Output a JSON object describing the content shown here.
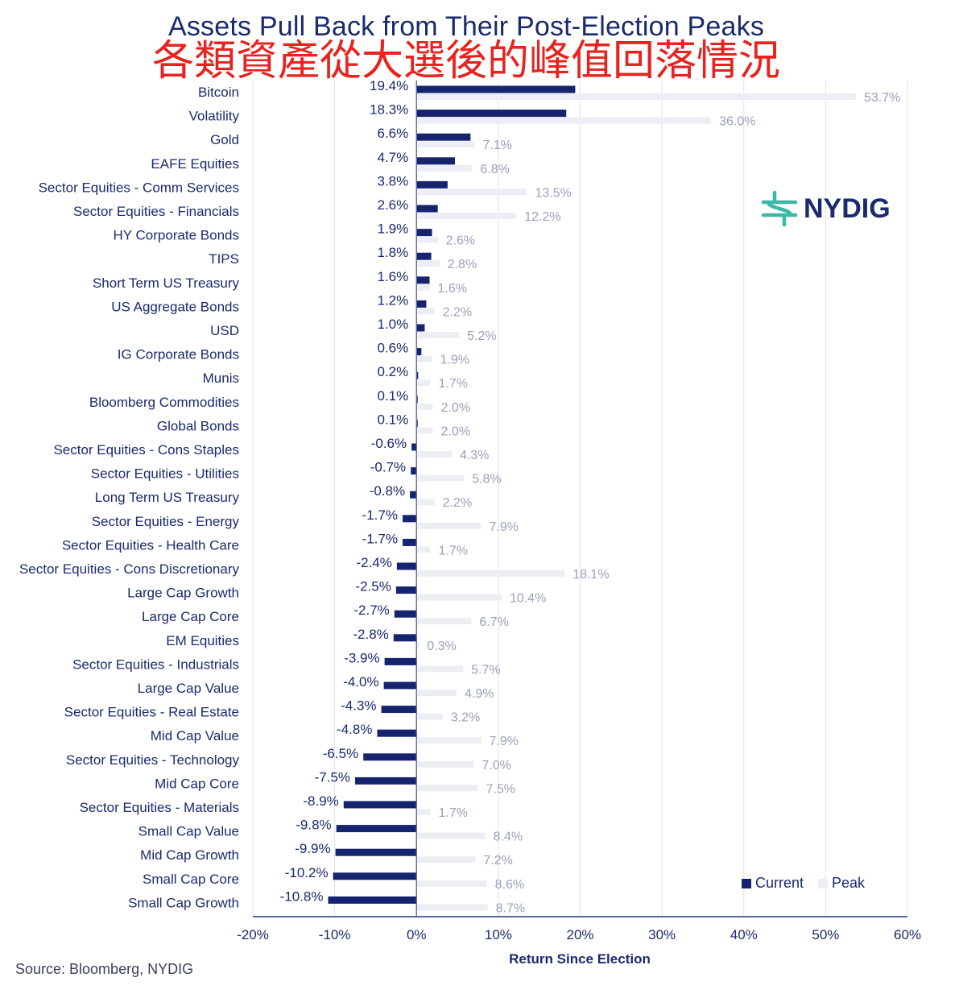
{
  "title": "Assets Pull Back from Their Post-Election Peaks",
  "subtitle": "各類資產從大選後的峰值回落情況",
  "source": "Source: Bloomberg, NYDIG",
  "logo": {
    "name": "NYDIG",
    "icon": "nydig-logo-icon",
    "icon_color": "#3bb9a4"
  },
  "colors": {
    "current": "#16236e",
    "peak": "#eceef4",
    "grid": "#e4e6ee",
    "axis": "#5a6aa0",
    "text": "#1a2a6e",
    "label_peak": "#9aa0b8"
  },
  "legend": {
    "current": "Current",
    "peak": "Peak"
  },
  "chart_data": {
    "type": "bar",
    "orientation": "horizontal",
    "xlabel": "Return Since Election",
    "xlim": [
      -20,
      60
    ],
    "xticks": [
      "-20%",
      "-10%",
      "0%",
      "10%",
      "20%",
      "30%",
      "40%",
      "50%",
      "60%"
    ],
    "grid": true,
    "legend_position": "bottom-right",
    "categories": [
      "Bitcoin",
      "Volatility",
      "Gold",
      "EAFE Equities",
      "Sector Equities - Comm Services",
      "Sector Equities - Financials",
      "HY Corporate Bonds",
      "TIPS",
      "Short Term US Treasury",
      "US Aggregate Bonds",
      "USD",
      "IG Corporate Bonds",
      "Munis",
      "Bloomberg Commodities",
      "Global Bonds",
      "Sector Equities - Cons Staples",
      "Sector Equities - Utilities",
      "Long Term US Treasury",
      "Sector Equities - Energy",
      "Sector Equities - Health Care",
      "Sector Equities - Cons Discretionary",
      "Large Cap Growth",
      "Large Cap Core",
      "EM Equities",
      "Sector Equities - Industrials",
      "Large Cap Value",
      "Sector Equities - Real Estate",
      "Mid Cap Value",
      "Sector Equities - Technology",
      "Mid Cap Core",
      "Sector Equities - Materials",
      "Small Cap Value",
      "Mid Cap Growth",
      "Small Cap Core",
      "Small Cap Growth"
    ],
    "series": [
      {
        "name": "Current",
        "values": [
          19.4,
          18.3,
          6.6,
          4.7,
          3.8,
          2.6,
          1.9,
          1.8,
          1.6,
          1.2,
          1.0,
          0.6,
          0.2,
          0.1,
          0.1,
          -0.6,
          -0.7,
          -0.8,
          -1.7,
          -1.7,
          -2.4,
          -2.5,
          -2.7,
          -2.8,
          -3.9,
          -4.0,
          -4.3,
          -4.8,
          -6.5,
          -7.5,
          -8.9,
          -9.8,
          -9.9,
          -10.2,
          -10.8
        ],
        "labels": [
          "19.4%",
          "18.3%",
          "6.6%",
          "4.7%",
          "3.8%",
          "2.6%",
          "1.9%",
          "1.8%",
          "1.6%",
          "1.2%",
          "1.0%",
          "0.6%",
          "0.2%",
          "0.1%",
          "0.1%",
          "-0.6%",
          "-0.7%",
          "-0.8%",
          "-1.7%",
          "-1.7%",
          "-2.4%",
          "-2.5%",
          "-2.7%",
          "-2.8%",
          "-3.9%",
          "-4.0%",
          "-4.3%",
          "-4.8%",
          "-6.5%",
          "-7.5%",
          "-8.9%",
          "-9.8%",
          "-9.9%",
          "-10.2%",
          "-10.8%"
        ]
      },
      {
        "name": "Peak",
        "values": [
          53.7,
          36.0,
          7.1,
          6.8,
          13.5,
          12.2,
          2.6,
          2.8,
          1.6,
          2.2,
          5.2,
          1.9,
          1.7,
          2.0,
          2.0,
          4.3,
          5.8,
          2.2,
          7.9,
          1.7,
          18.1,
          10.4,
          6.7,
          0.3,
          5.7,
          4.9,
          3.2,
          7.9,
          7.0,
          7.5,
          1.7,
          8.4,
          7.2,
          8.6,
          8.7
        ],
        "labels": [
          "53.7%",
          "36.0%",
          "7.1%",
          "6.8%",
          "13.5%",
          "12.2%",
          "2.6%",
          "2.8%",
          "1.6%",
          "2.2%",
          "5.2%",
          "1.9%",
          "1.7%",
          "2.0%",
          "2.0%",
          "4.3%",
          "5.8%",
          "2.2%",
          "7.9%",
          "1.7%",
          "18.1%",
          "10.4%",
          "6.7%",
          "0.3%",
          "5.7%",
          "4.9%",
          "3.2%",
          "7.9%",
          "7.0%",
          "7.5%",
          "1.7%",
          "8.4%",
          "7.2%",
          "8.6%",
          "8.7%"
        ]
      }
    ]
  }
}
